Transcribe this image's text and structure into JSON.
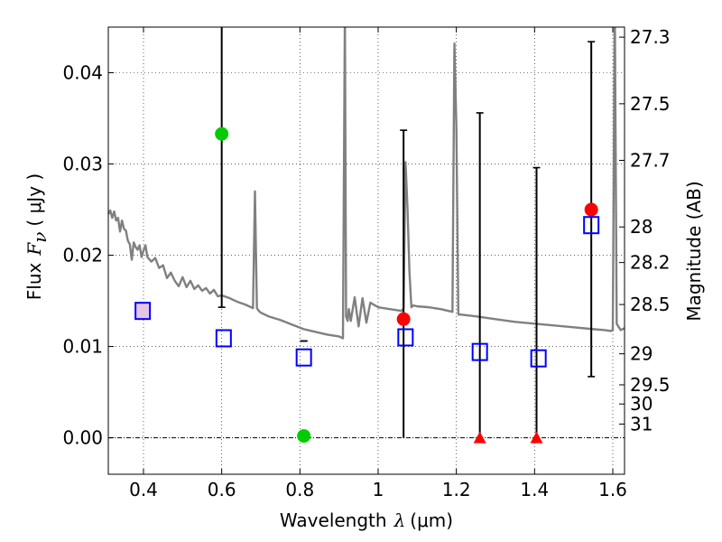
{
  "chart_data": {
    "type": "scatter",
    "title": "",
    "xlabel": {
      "prefix": "Wavelength",
      "symbol": "λ",
      "unit": "(μm)"
    },
    "ylabel": {
      "prefix": "Flux",
      "symbol": "F",
      "subscript": "ν",
      "unit": "( μJy )"
    },
    "y2label": "Magnitude (AB)",
    "xlim": [
      0.31,
      1.63
    ],
    "ylim": [
      -0.004,
      0.045
    ],
    "grid": true,
    "x_ticks": [
      0.4,
      0.6,
      0.8,
      1.0,
      1.2,
      1.4,
      1.6
    ],
    "x_tick_labels": [
      "0.4",
      "0.6",
      "0.8",
      "1",
      "1.2",
      "1.4",
      "1.6"
    ],
    "y_ticks": [
      0.0,
      0.01,
      0.02,
      0.03,
      0.04
    ],
    "y_tick_labels": [
      "0.00",
      "0.01",
      "0.02",
      "0.03",
      "0.04"
    ],
    "y2_ticks": [
      {
        "label": "27.3",
        "flux": 0.0439
      },
      {
        "label": "27.5",
        "flux": 0.0366
      },
      {
        "label": "27.7",
        "flux": 0.0304
      },
      {
        "label": "28",
        "flux": 0.0231
      },
      {
        "label": "28.2",
        "flux": 0.0192
      },
      {
        "label": "28.5",
        "flux": 0.0146
      },
      {
        "label": "29",
        "flux": 0.0092
      },
      {
        "label": "29.5",
        "flux": 0.0058
      },
      {
        "label": "30",
        "flux": 0.0037
      },
      {
        "label": "31",
        "flux": 0.0015
      }
    ],
    "zero_line": 0.0,
    "series": [
      {
        "name": "model_sed",
        "type": "line",
        "color": "#808080",
        "x": [
          0.31,
          0.315,
          0.32,
          0.325,
          0.33,
          0.335,
          0.34,
          0.345,
          0.35,
          0.355,
          0.36,
          0.365,
          0.37,
          0.375,
          0.38,
          0.385,
          0.39,
          0.395,
          0.4,
          0.405,
          0.41,
          0.42,
          0.43,
          0.44,
          0.45,
          0.46,
          0.47,
          0.48,
          0.49,
          0.5,
          0.51,
          0.52,
          0.53,
          0.54,
          0.55,
          0.56,
          0.57,
          0.58,
          0.59,
          0.6,
          0.62,
          0.64,
          0.66,
          0.68,
          0.685,
          0.69,
          0.695,
          0.7,
          0.72,
          0.75,
          0.78,
          0.81,
          0.84,
          0.87,
          0.9,
          0.91,
          0.915,
          0.918,
          0.922,
          0.925,
          0.93,
          0.94,
          0.95,
          0.96,
          0.97,
          0.98,
          1.0,
          1.03,
          1.06,
          1.065,
          1.07,
          1.075,
          1.08,
          1.085,
          1.09,
          1.1,
          1.13,
          1.16,
          1.19,
          1.195,
          1.2,
          1.205,
          1.21,
          1.25,
          1.3,
          1.35,
          1.4,
          1.45,
          1.5,
          1.55,
          1.58,
          1.595,
          1.6,
          1.605,
          1.61,
          1.62,
          1.63
        ],
        "y": [
          0.0245,
          0.0249,
          0.0241,
          0.0248,
          0.0238,
          0.0241,
          0.0226,
          0.0238,
          0.0229,
          0.0227,
          0.0216,
          0.0212,
          0.0195,
          0.0214,
          0.0209,
          0.0206,
          0.0211,
          0.0198,
          0.0205,
          0.0211,
          0.0198,
          0.0193,
          0.0197,
          0.0186,
          0.0189,
          0.0175,
          0.0181,
          0.0172,
          0.0166,
          0.0176,
          0.0165,
          0.0172,
          0.0163,
          0.0167,
          0.0161,
          0.0164,
          0.0158,
          0.0162,
          0.0155,
          0.0156,
          0.0153,
          0.0149,
          0.0146,
          0.0142,
          0.027,
          0.0142,
          0.0139,
          0.0137,
          0.0133,
          0.0129,
          0.0124,
          0.0119,
          0.0116,
          0.0113,
          0.0111,
          0.0109,
          0.047,
          0.0133,
          0.0128,
          0.0141,
          0.0128,
          0.0154,
          0.0122,
          0.0153,
          0.0126,
          0.0148,
          0.0143,
          0.0141,
          0.0139,
          0.0142,
          0.0302,
          0.0252,
          0.0182,
          0.0143,
          0.0145,
          0.0144,
          0.0143,
          0.0141,
          0.0138,
          0.0432,
          0.0342,
          0.0135,
          0.0135,
          0.0133,
          0.013,
          0.0127,
          0.0125,
          0.0123,
          0.0121,
          0.0119,
          0.0118,
          0.0117,
          0.0118,
          0.048,
          0.0125,
          0.0118,
          0.012
        ]
      },
      {
        "name": "photometry",
        "type": "scatter",
        "x": [
          0.6,
          0.81,
          1.065
        ],
        "y": [
          0.0333,
          0.0002,
          0.013
        ],
        "yerr_low": [
          0.0143,
          0.0106,
          0.0
        ],
        "yerr_high": [
          0.045,
          0.0106,
          0.0337
        ],
        "colors": [
          "#00cc00",
          "#00cc00",
          "#ff0000"
        ]
      },
      {
        "name": "photometry_right",
        "type": "scatter",
        "x": [
          1.545
        ],
        "y": [
          0.025
        ],
        "yerr_low": [
          0.0067
        ],
        "yerr_high": [
          0.0434
        ],
        "colors": [
          "#ff0000"
        ]
      },
      {
        "name": "upper_limits",
        "type": "scatter",
        "marker": "triangle",
        "x": [
          1.26,
          1.405
        ],
        "y": [
          0.0,
          0.0
        ],
        "yerr_low": [
          0.0,
          0.0
        ],
        "yerr_high": [
          0.0356,
          0.0296
        ],
        "colors": [
          "#ff0000",
          "#ff0000"
        ]
      },
      {
        "name": "model_bands",
        "type": "scatter",
        "marker": "square-open",
        "color": "#0000ff",
        "x": [
          0.398,
          0.605,
          0.81,
          1.07,
          1.26,
          1.41,
          1.545
        ],
        "y": [
          0.0139,
          0.0109,
          0.0088,
          0.011,
          0.0094,
          0.0087,
          0.0233
        ]
      }
    ],
    "light_fill_square_x": 0.398
  }
}
